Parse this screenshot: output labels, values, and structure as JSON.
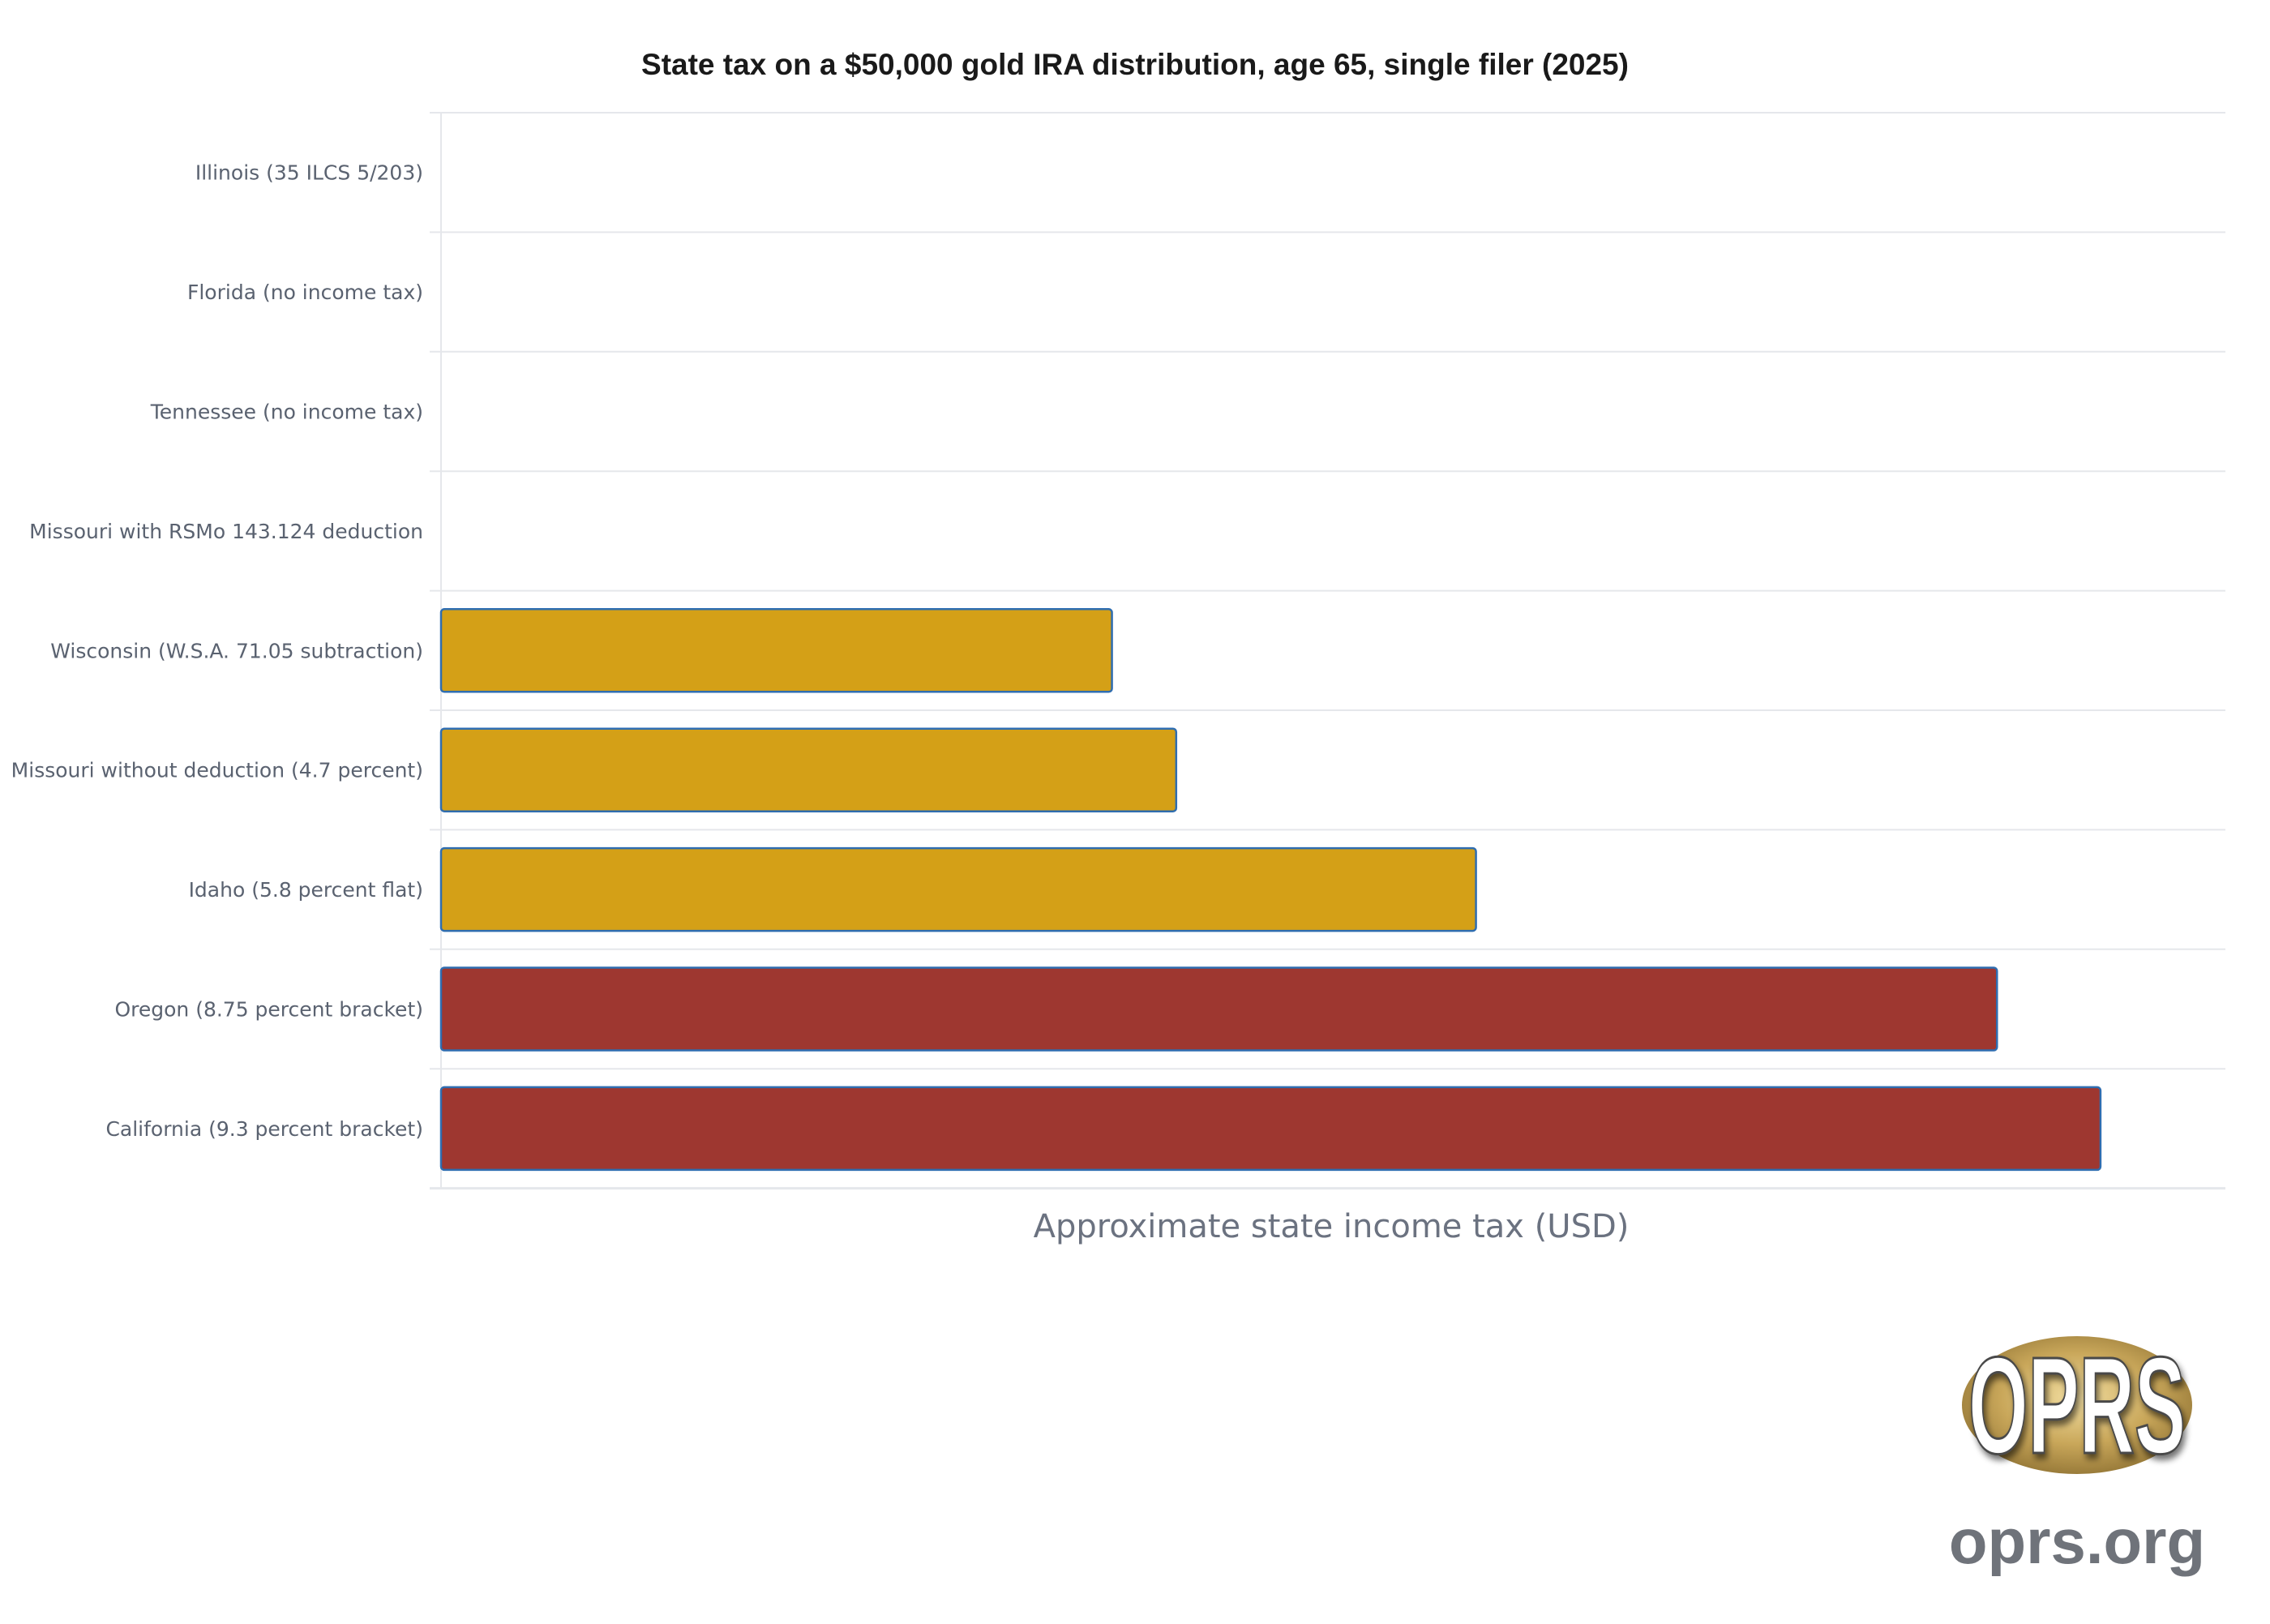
{
  "chart_data": {
    "type": "bar",
    "orientation": "horizontal",
    "title": "State tax on a $50,000 gold IRA distribution, age 65, single filer (2025)",
    "xlabel": "Approximate state income tax (USD)",
    "ylabel": "",
    "xlim": [
      0,
      5000
    ],
    "grid": true,
    "categories": [
      "Illinois (35 ILCS 5/203)",
      "Florida (no income tax)",
      "Tennessee (no income tax)",
      "Missouri with RSMo 143.124 deduction",
      "Wisconsin (W.S.A. 71.05 subtraction)",
      "Missouri without deduction (4.7 percent)",
      "Idaho (5.8 percent flat)",
      "Oregon (8.75 percent bracket)",
      "California (9.3 percent bracket)"
    ],
    "values": [
      0,
      0,
      0,
      0,
      1880,
      2060,
      2900,
      4360,
      4650
    ],
    "bar_colors": [
      "#d4a017",
      "#d4a017",
      "#d4a017",
      "#d4a017",
      "#d4a017",
      "#d4a017",
      "#d4a017",
      "#9e3730",
      "#9e3730"
    ],
    "bar_outline_color": "#2f6db0"
  },
  "logo": {
    "letters": "OPRS",
    "wordmark": "oprs.org"
  },
  "colors": {
    "gold": "#d4a017",
    "red": "#9e3730",
    "grid": "#e5e7eb",
    "outline": "#2f6db0"
  }
}
